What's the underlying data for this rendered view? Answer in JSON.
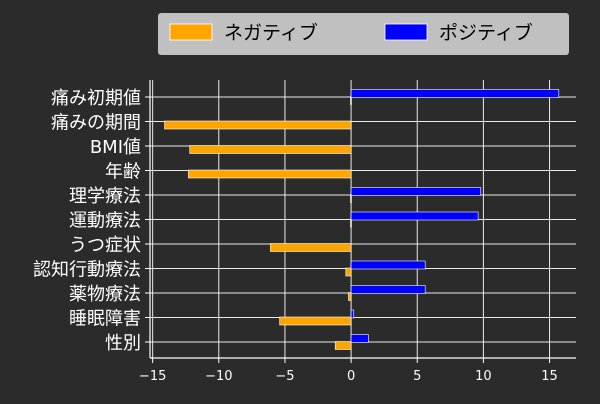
{
  "chart_data": {
    "type": "bar",
    "orientation": "horizontal",
    "categories": [
      "痛み初期値",
      "痛みの期間",
      "BMI値",
      "年齢",
      "理学療法",
      "運動療法",
      "うつ症状",
      "認知行動療法",
      "薬物療法",
      "睡眠障害",
      "性別"
    ],
    "series": [
      {
        "name": "ネガティブ",
        "color": "#ffa500",
        "values": [
          -0.05,
          -14.1,
          -12.2,
          -12.3,
          -0.05,
          -0.05,
          -6.1,
          -0.4,
          -0.2,
          -5.4,
          -1.2
        ]
      },
      {
        "name": "ポジティブ",
        "color": "#0000ff",
        "values": [
          15.7,
          0,
          0,
          0,
          9.8,
          9.6,
          0,
          5.6,
          5.6,
          0.2,
          1.3
        ]
      }
    ],
    "xlim": [
      -15.2,
      17.0
    ],
    "xticks": [
      -15,
      -10,
      -5,
      0,
      5,
      10,
      15
    ],
    "xtick_labels": [
      "−15",
      "−10",
      "−5",
      "0",
      "5",
      "10",
      "15"
    ],
    "grid": true,
    "legend_position": "top",
    "background": "#2b2b2b",
    "text_color": "#ffffff",
    "legend_background": "#c0c0c0",
    "legend_text_color": "#000000"
  }
}
